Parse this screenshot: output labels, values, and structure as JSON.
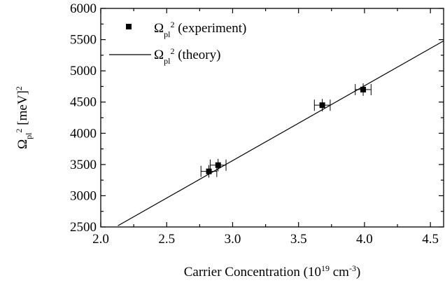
{
  "chart_data": {
    "type": "scatter",
    "xlabel": {
      "main": "Carrier Concentration (10",
      "sup1": "19",
      "mid": " cm",
      "sup2": "-3",
      "end": ")"
    },
    "ylabel": {
      "symbol": "Ω",
      "sub": "pl",
      "sup": "2",
      "unit": " [meV]",
      "unit_sup": "2"
    },
    "xlim": [
      2.0,
      4.6
    ],
    "ylim": [
      2500,
      6000
    ],
    "xticks": [
      2.0,
      2.5,
      3.0,
      3.5,
      4.0,
      4.5
    ],
    "xtick_labels": [
      "2.0",
      "2.5",
      "3.0",
      "3.5",
      "4.0",
      "4.5"
    ],
    "yticks": [
      2500,
      3000,
      3500,
      4000,
      4500,
      5000,
      5500,
      6000
    ],
    "ytick_labels": [
      "2500",
      "3000",
      "3500",
      "4000",
      "4500",
      "5000",
      "5500",
      "6000"
    ],
    "grid": false,
    "legend_position": "top-left",
    "series": [
      {
        "name": "Ω_pl^2 (experiment)",
        "legend": {
          "symbol": "Ω",
          "sub": "pl",
          "sup": "2",
          "text": " (experiment)"
        },
        "kind": "points",
        "color": "#000000",
        "x": [
          2.82,
          2.89,
          3.68,
          3.99
        ],
        "y": [
          3390,
          3490,
          4450,
          4700
        ],
        "x_err": [
          0.06,
          0.06,
          0.06,
          0.06
        ],
        "y_err": [
          100,
          100,
          100,
          100
        ]
      },
      {
        "name": "Ω_pl^2 (theory)",
        "legend": {
          "symbol": "Ω",
          "sub": "pl",
          "sup": "2",
          "text": " (theory)"
        },
        "kind": "line",
        "color": "#000000",
        "x": [
          2.13,
          4.6
        ],
        "y": [
          2520,
          5480
        ]
      }
    ]
  }
}
